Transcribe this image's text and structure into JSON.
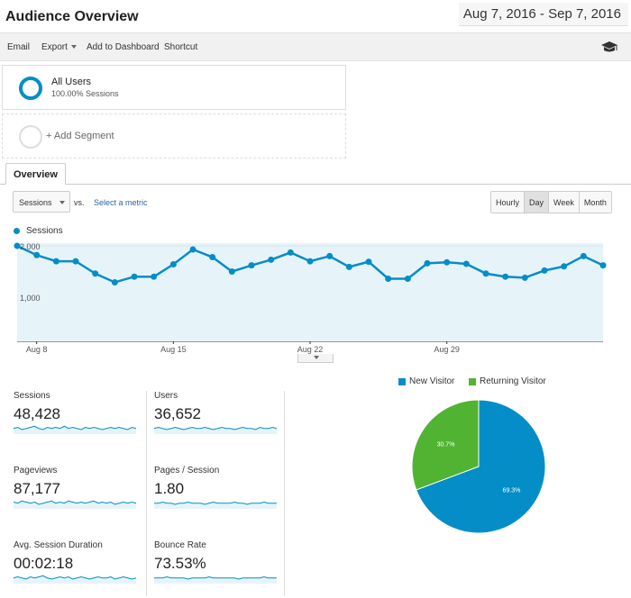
{
  "header": {
    "title": "Audience Overview",
    "date_range": "Aug 7, 2016 - Sep 7, 2016"
  },
  "toolbar": {
    "email": "Email",
    "export": "Export",
    "add_to_dashboard": "Add to Dashboard",
    "shortcut": "Shortcut",
    "icon": "graduation-cap-icon"
  },
  "segments": {
    "all_users": {
      "title": "All Users",
      "subtitle": "100.00% Sessions"
    },
    "add_segment": "+ Add Segment"
  },
  "tabs": {
    "overview": "Overview"
  },
  "controls": {
    "metric": "Sessions",
    "vs": "vs.",
    "select_metric": "Select a metric",
    "granularity": [
      "Hourly",
      "Day",
      "Week",
      "Month"
    ],
    "active_granularity": "Day"
  },
  "chart_data": [
    {
      "type": "area",
      "series": [
        {
          "name": "Sessions",
          "values": [
            2000,
            1820,
            1700,
            1700,
            1460,
            1290,
            1400,
            1400,
            1640,
            1930,
            1780,
            1500,
            1620,
            1730,
            1870,
            1700,
            1800,
            1590,
            1690,
            1360,
            1360,
            1660,
            1680,
            1650,
            1460,
            1400,
            1380,
            1520,
            1600,
            1800,
            1620
          ]
        }
      ],
      "x_tick_labels": [
        "Aug 8",
        "Aug 15",
        "Aug 22",
        "Aug 29"
      ],
      "y_tick_labels": [
        "1,000",
        "2,000"
      ],
      "ylim": [
        0,
        2200
      ],
      "colors": {
        "line": "#058dc7",
        "fill": "#e6f4fa"
      }
    },
    {
      "type": "pie",
      "categories": [
        "New Visitor",
        "Returning Visitor"
      ],
      "values": [
        69.3,
        30.7
      ],
      "labels": [
        "69.3%",
        "30.7%"
      ],
      "colors": [
        "#058dc7",
        "#50b432"
      ],
      "legend": "top"
    }
  ],
  "stats": [
    {
      "label": "Sessions",
      "value": "48,428",
      "spark": [
        5,
        6,
        4,
        5,
        6,
        7,
        5,
        4,
        6,
        5,
        6,
        5,
        7,
        5,
        6,
        5,
        4,
        6,
        5,
        6,
        5,
        4,
        5,
        6,
        5,
        6,
        5,
        4,
        6,
        5
      ]
    },
    {
      "label": "Users",
      "value": "36,652",
      "spark": [
        5,
        6,
        5,
        4,
        5,
        6,
        5,
        4,
        5,
        6,
        5,
        5,
        6,
        5,
        4,
        5,
        6,
        5,
        5,
        4,
        5,
        6,
        5,
        5,
        4,
        6,
        5,
        5,
        6,
        5
      ]
    },
    {
      "label": "Pageviews",
      "value": "87,177",
      "spark": [
        6,
        5,
        7,
        6,
        5,
        6,
        4,
        5,
        6,
        7,
        5,
        6,
        5,
        7,
        6,
        5,
        6,
        5,
        6,
        7,
        5,
        6,
        5,
        6,
        4,
        5,
        6,
        5,
        6,
        5
      ]
    },
    {
      "label": "Pages / Session",
      "value": "1.80",
      "spark": [
        5,
        5,
        6,
        5,
        5,
        4,
        5,
        5,
        6,
        5,
        5,
        5,
        4,
        5,
        6,
        5,
        5,
        5,
        5,
        6,
        5,
        5,
        4,
        5,
        5,
        5,
        6,
        5,
        5,
        5
      ]
    },
    {
      "label": "Avg. Session Duration",
      "value": "00:02:18",
      "spark": [
        5,
        6,
        5,
        4,
        6,
        5,
        6,
        7,
        5,
        4,
        5,
        6,
        5,
        6,
        4,
        5,
        6,
        5,
        4,
        5,
        6,
        5,
        5,
        6,
        4,
        5,
        6,
        5,
        4,
        5
      ]
    },
    {
      "label": "Bounce Rate",
      "value": "73.53%",
      "spark": [
        5,
        5,
        5,
        6,
        5,
        5,
        5,
        5,
        4,
        5,
        5,
        5,
        5,
        6,
        5,
        5,
        5,
        5,
        5,
        5,
        4,
        5,
        5,
        5,
        5,
        5,
        6,
        5,
        5,
        5
      ]
    }
  ]
}
